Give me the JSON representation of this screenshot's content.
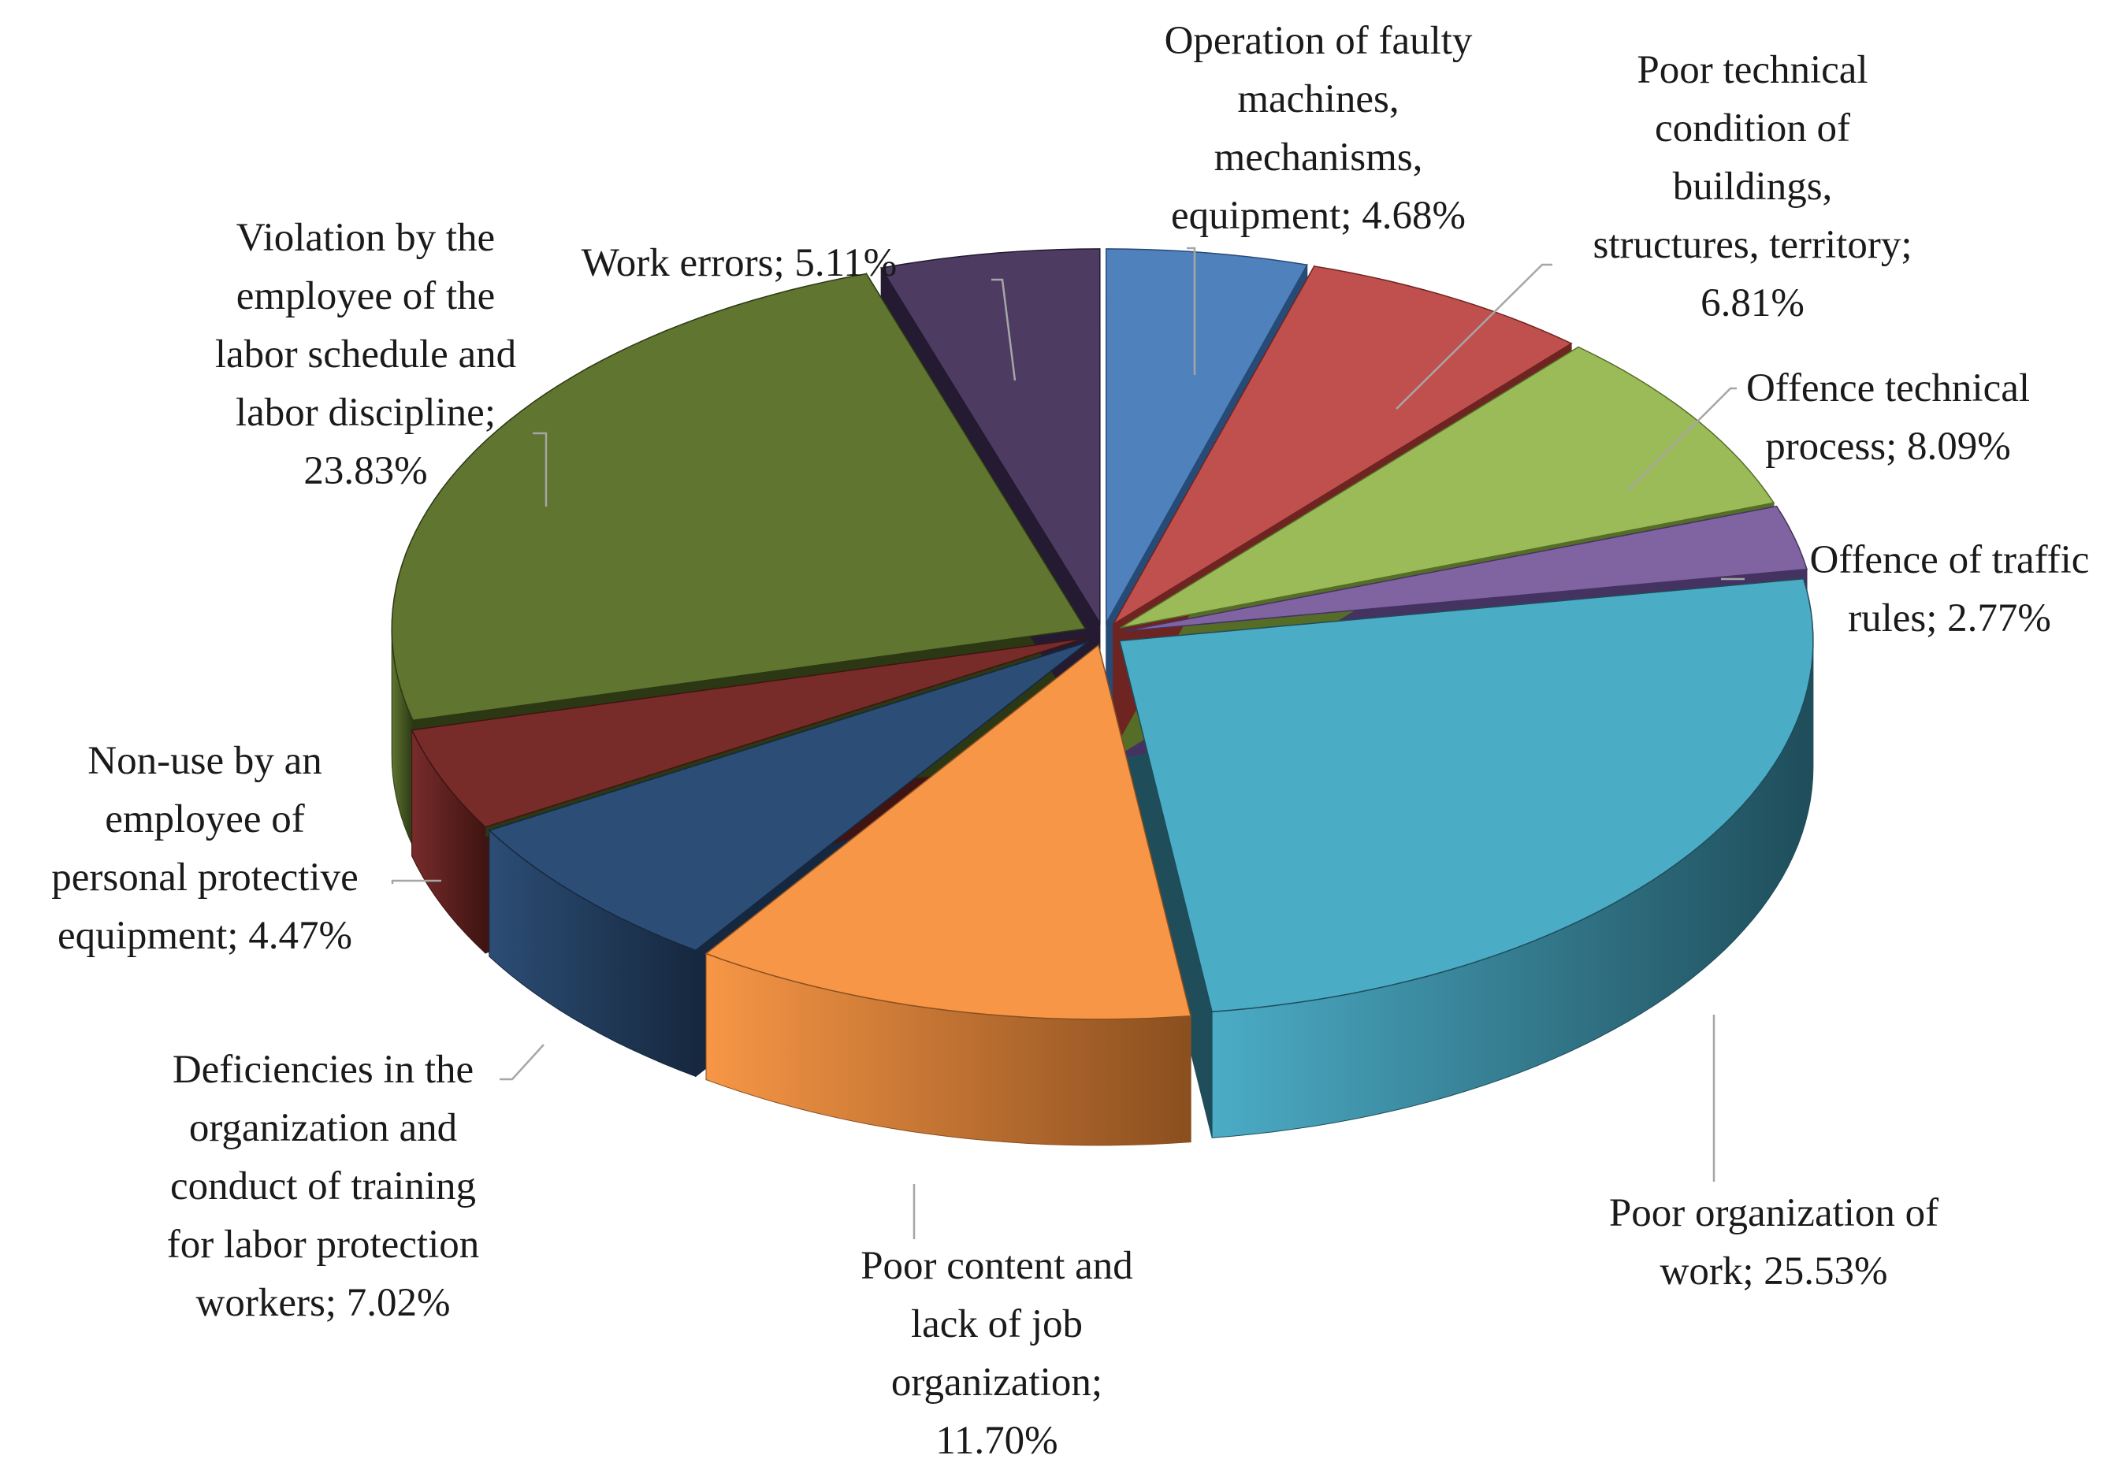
{
  "chart_data": {
    "type": "pie",
    "title": "",
    "value_suffix": "%",
    "slices": [
      {
        "label": "Operation of faulty machines, mechanisms, equipment",
        "value": 4.68,
        "display": "Operation of faulty machines, mechanisms, equipment; 4.68%",
        "color": "#4f81bd",
        "dark": "#274b77"
      },
      {
        "label": "Poor technical condition of buildings, structures, territory",
        "value": 6.81,
        "display": "Poor technical condition of buildings, structures, territory; 6.81%",
        "color": "#c0504d",
        "dark": "#6e2421"
      },
      {
        "label": "Offence technical process",
        "value": 8.09,
        "display": "Offence technical process; 8.09%",
        "color": "#9bbb59",
        "dark": "#566d27"
      },
      {
        "label": "Offence of traffic rules",
        "value": 2.77,
        "display": "Offence of traffic rules; 2.77%",
        "color": "#8064a2",
        "dark": "#443360"
      },
      {
        "label": "Poor organization of work",
        "value": 25.53,
        "display": "Poor organization of work; 25.53%",
        "color": "#4bacc6",
        "dark": "#1f4d5a"
      },
      {
        "label": "Poor content and lack of job organization",
        "value": 11.7,
        "display": "Poor content and lack of job organization; 11.70%",
        "color": "#f79646",
        "dark": "#8a4f1f"
      },
      {
        "label": "Deficiencies in the organization and conduct of training for labor protection workers",
        "value": 7.02,
        "display": "Deficiencies in the organization and conduct of training for labor protection workers; 7.02%",
        "color": "#2c4d75",
        "dark": "#16283f"
      },
      {
        "label": "Non-use by an employee of personal protective equipment",
        "value": 4.47,
        "display": "Non-use by an employee of personal protective equipment; 4.47%",
        "color": "#772c2a",
        "dark": "#3f1412"
      },
      {
        "label": "Violation by the employee of the labor schedule and labor discipline",
        "value": 23.83,
        "display": "Violation by the employee of the labor schedule and labor discipline; 23.83%",
        "color": "#5f7530",
        "dark": "#2c3814"
      },
      {
        "label": "Work errors",
        "value": 5.11,
        "display": "Work errors; 5.11%",
        "color": "#4d3b62",
        "dark": "#241a31"
      }
    ]
  }
}
